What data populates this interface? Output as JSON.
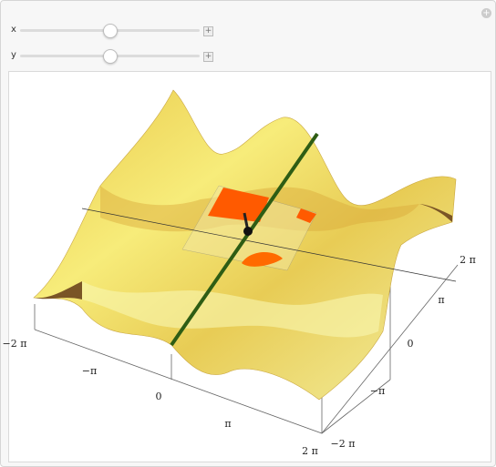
{
  "controls": [
    {
      "label": "x"
    },
    {
      "label": "y"
    }
  ],
  "plot": {
    "front_axis_ticks": [
      "−2 π",
      "−π",
      "0",
      "π",
      "2 π"
    ],
    "side_axis_ticks": [
      "2 π",
      "π",
      "0",
      "−π",
      "−2 π"
    ]
  }
}
